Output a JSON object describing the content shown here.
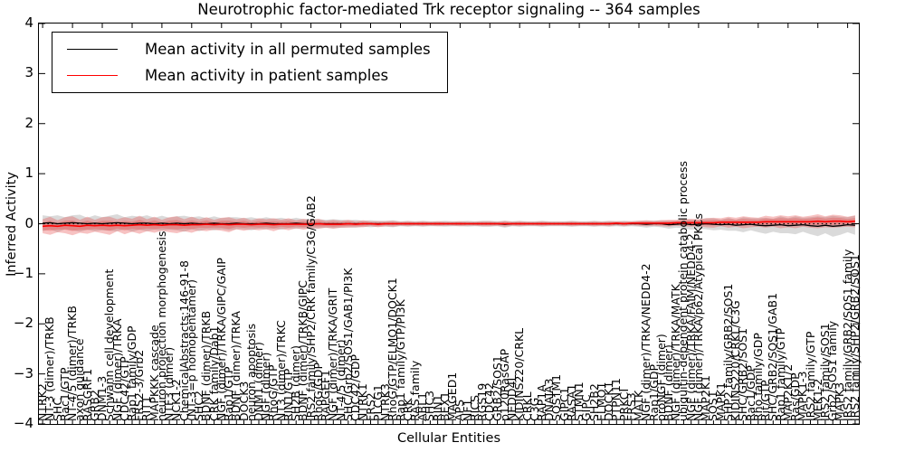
{
  "figure": {
    "title": "Neurotrophic factor-mediated Trk receptor signaling -- 364 samples",
    "xlabel": "Cellular Entities",
    "ylabel": "Inferred Activity",
    "legend": [
      {
        "label": "Mean activity in all permuted samples",
        "color": "#000000"
      },
      {
        "label": "Mean activity in patient samples",
        "color": "#ff0000"
      }
    ],
    "colors": {
      "permuted_line": "#000000",
      "permuted_band": "rgba(140,140,140,0.32)",
      "patient_line": "#ff0000",
      "patient_band": "rgba(232,70,70,0.33)",
      "axis": "#000000",
      "background": "#ffffff"
    }
  },
  "chart_data": {
    "type": "line",
    "title": "Neurotrophic factor-mediated Trk receptor signaling -- 364 samples",
    "xlabel": "Cellular Entities",
    "ylabel": "Inferred Activity",
    "ylim": [
      -4,
      4
    ],
    "ytick_labels": [
      "4",
      "3",
      "2",
      "1",
      "0",
      "−1",
      "−2",
      "−3",
      "−4"
    ],
    "yticks": [
      4,
      3,
      2,
      1,
      0,
      -1,
      -2,
      -3,
      -4
    ],
    "grid": false,
    "legend_position": "upper left",
    "zero_line_style": "dotted",
    "sample_count": 364,
    "categories": [
      "NTRK2",
      "NT-3 (dimer)/TRKB",
      "SHC",
      "Rac1/GTP",
      "NT-4/5 (dimer)/TRKB",
      "axon guidance",
      "RASGRF1",
      "GRB2",
      "DNM1-3",
      "Schwann cell development",
      "NGF (dimer)/TRKA",
      "CDC42/GTP",
      "Rap1 family/GDP",
      "FRS2-3/Grb2",
      "RIT1",
      "MAPKKK cascade",
      "neuron projection morphogenesis",
      "NTF3 (dimer)",
      "NCK1-2",
      "ChemicalAbstracts:146-91-8",
      "(NT-3=p homopentamer)",
      "SHC2",
      "BDNF (dimer)/TRKB",
      "CRK family/Dab1",
      "NGF (dimer)/TRKA/GIPC/GAIP",
      "Rap1/GTP",
      "BDNF (dimer)/TRKA",
      "DOCK3",
      "neuron apoptosis",
      "DNM1 (dimer)",
      "NGF (dimer)",
      "RhoG/GTP",
      "NT3 (dimer)/TRKC",
      "RIN1/GTP",
      "SH2B (dimer)",
      "BDNF (dimer)/TRKB/GIPC",
      "IRS2 family/SHP2/CRK family/C3G/GAB2",
      "RhoG/GDP",
      "RAPGEF1",
      "NGF (dimer)/TRKA/GRIT",
      "NT-4/5 (dimer)",
      "SHC/Grb2/SOS1/GAB1/PI3K",
      "CDC42/GDP",
      "NTRK1",
      "FRS2",
      "PLCG1",
      "NTRK3",
      "RhoG/GTP/ELMO1/DOCK1",
      "Rap1 family/GTP/PI3K",
      "CRK",
      "RAS family",
      "ABL1",
      "SHC3",
      "RIN1",
      "BEX1",
      "MAGED1",
      "APS",
      "NF1",
      "RICS",
      "RGS19",
      "CDC42",
      "GRB2/SOS1",
      "p120RasGAP",
      "NEDD4L",
      "KIDINS220/CRKL",
      "CRKL",
      "C3G",
      "RAP1A",
      "DNAJA3",
      "SQSTM1",
      "GIPC1",
      "RASA1",
      "STMN1",
      "GIPC",
      "SH2B2",
      "ELMO1",
      "DOCK1",
      "PTPN11",
      "PRKCI",
      "FRS3",
      "MATK",
      "NGF (dimer)/TRKA/NEDD4-2",
      "Rap1/GDP",
      "proNGF (dimer)",
      "BDNF (dimer)",
      "NGF (dimer)/TRKA/MATK",
      "ubiquitin-dependent protein catabolic process",
      "NGF (dimer)/TRKA/FAIM/NEDD4-2",
      "NGF (dimer)/TRKA/p62/Atypical PKCs",
      "MAP2K1",
      "SOS1",
      "MAPK1",
      "SHP2 family/GRB2/SOS1",
      "KIDINS220/CRKL/C3G",
      "SHC/GRB2/SOS1",
      "Rac1/GDP",
      "Rho family/GDP",
      "Rit/GTP",
      "SHC/GRB2/SOS1/GAB1",
      "Rap1 family/GTP",
      "MAP2K1/2",
      "Ras/GDP",
      "MAPK1-3",
      "IRS2 family/GTP",
      "MEK1-2",
      "IRS2 family/SOS1",
      "Grb2/SOS1 family",
      "MAPK3",
      "IRS2 family/GRB2/SOS1 family",
      "IRS2 family/SHP2/GRB2/SOS1"
    ],
    "series": [
      {
        "name": "Mean activity in all permuted samples",
        "mean": [
          0.01,
          0.02,
          0.0,
          0.01,
          0.02,
          0.01,
          0.0,
          0.01,
          0.0,
          0.01,
          0.02,
          0.01,
          0.0,
          0.01,
          0.01,
          0.0,
          0.01,
          0.0,
          0.01,
          0.0,
          0.01,
          0.0,
          0.0,
          0.01,
          0.0,
          0.0,
          0.01,
          0.0,
          0.0,
          0.0,
          0.01,
          0.0,
          0.0,
          0.0,
          0.01,
          0.0,
          0.0,
          0.0,
          0.0,
          0.0,
          0.0,
          0.0,
          0.0,
          0.0,
          0.0,
          0.0,
          0.0,
          0.0,
          0.0,
          0.0,
          0.0,
          0.0,
          0.0,
          0.0,
          0.0,
          0.0,
          0.0,
          0.0,
          0.0,
          0.0,
          0.0,
          0.0,
          -0.01,
          0.0,
          0.0,
          0.0,
          0.0,
          0.0,
          0.0,
          0.0,
          0.0,
          0.0,
          0.0,
          0.0,
          0.0,
          0.0,
          0.0,
          0.0,
          0.0,
          0.0,
          0.0,
          -0.01,
          0.0,
          0.0,
          -0.02,
          -0.01,
          0.0,
          -0.02,
          -0.01,
          0.0,
          -0.01,
          -0.02,
          -0.01,
          -0.03,
          -0.02,
          -0.01,
          -0.03,
          -0.04,
          -0.03,
          -0.02,
          -0.04,
          -0.03,
          -0.02,
          -0.04,
          -0.05,
          -0.03,
          -0.05,
          -0.04,
          -0.02,
          -0.03
        ],
        "std": [
          0.16,
          0.13,
          0.17,
          0.12,
          0.15,
          0.17,
          0.12,
          0.16,
          0.13,
          0.15,
          0.17,
          0.12,
          0.16,
          0.13,
          0.16,
          0.12,
          0.15,
          0.12,
          0.14,
          0.16,
          0.12,
          0.15,
          0.11,
          0.14,
          0.11,
          0.13,
          0.12,
          0.11,
          0.13,
          0.1,
          0.12,
          0.1,
          0.12,
          0.09,
          0.11,
          0.09,
          0.1,
          0.09,
          0.08,
          0.09,
          0.08,
          0.07,
          0.08,
          0.06,
          0.07,
          0.06,
          0.06,
          0.07,
          0.05,
          0.06,
          0.05,
          0.06,
          0.05,
          0.05,
          0.06,
          0.05,
          0.05,
          0.06,
          0.05,
          0.06,
          0.06,
          0.05,
          0.07,
          0.05,
          0.06,
          0.05,
          0.05,
          0.06,
          0.05,
          0.05,
          0.05,
          0.06,
          0.05,
          0.05,
          0.06,
          0.05,
          0.06,
          0.05,
          0.06,
          0.05,
          0.06,
          0.07,
          0.06,
          0.07,
          0.08,
          0.07,
          0.09,
          0.1,
          0.09,
          0.11,
          0.12,
          0.1,
          0.13,
          0.11,
          0.15,
          0.12,
          0.14,
          0.16,
          0.13,
          0.17,
          0.15,
          0.18,
          0.14,
          0.17,
          0.2,
          0.16,
          0.21,
          0.18,
          0.15,
          0.19
        ]
      },
      {
        "name": "Mean activity in patient samples",
        "mean": [
          -0.05,
          -0.04,
          -0.05,
          -0.03,
          -0.04,
          -0.05,
          -0.03,
          -0.04,
          -0.03,
          -0.04,
          -0.03,
          -0.04,
          -0.03,
          -0.02,
          -0.03,
          -0.02,
          -0.03,
          -0.02,
          -0.02,
          -0.03,
          -0.02,
          -0.02,
          -0.01,
          -0.02,
          -0.01,
          -0.02,
          -0.01,
          -0.01,
          -0.02,
          -0.01,
          -0.01,
          -0.02,
          -0.01,
          -0.01,
          -0.01,
          -0.01,
          -0.01,
          0.0,
          -0.01,
          -0.01,
          -0.01,
          0.0,
          -0.01,
          0.0,
          0.0,
          -0.01,
          0.0,
          0.0,
          0.0,
          0.0,
          0.0,
          0.0,
          0.0,
          0.0,
          0.0,
          0.0,
          0.0,
          0.0,
          0.0,
          0.0,
          0.0,
          0.0,
          0.0,
          0.0,
          0.0,
          0.0,
          0.0,
          0.0,
          0.0,
          0.0,
          0.0,
          0.0,
          0.0,
          0.0,
          0.0,
          0.0,
          0.0,
          0.01,
          0.0,
          0.01,
          0.01,
          0.01,
          0.01,
          0.01,
          0.01,
          0.02,
          0.02,
          0.02,
          0.02,
          0.02,
          0.02,
          0.03,
          0.03,
          0.03,
          0.03,
          0.03,
          0.03,
          0.04,
          0.04,
          0.04,
          0.04,
          0.04,
          0.04,
          0.04,
          0.05,
          0.04,
          0.05,
          0.05,
          0.04,
          0.05
        ],
        "std": [
          0.14,
          0.18,
          0.12,
          0.16,
          0.19,
          0.13,
          0.17,
          0.12,
          0.16,
          0.18,
          0.12,
          0.17,
          0.13,
          0.18,
          0.12,
          0.16,
          0.11,
          0.15,
          0.17,
          0.12,
          0.16,
          0.11,
          0.14,
          0.1,
          0.13,
          0.15,
          0.1,
          0.13,
          0.09,
          0.12,
          0.1,
          0.13,
          0.09,
          0.12,
          0.08,
          0.11,
          0.08,
          0.1,
          0.07,
          0.09,
          0.07,
          0.08,
          0.06,
          0.07,
          0.05,
          0.06,
          0.05,
          0.06,
          0.04,
          0.05,
          0.04,
          0.05,
          0.04,
          0.05,
          0.04,
          0.04,
          0.05,
          0.04,
          0.04,
          0.05,
          0.05,
          0.04,
          0.06,
          0.04,
          0.05,
          0.04,
          0.04,
          0.05,
          0.04,
          0.04,
          0.04,
          0.05,
          0.04,
          0.04,
          0.05,
          0.04,
          0.05,
          0.04,
          0.05,
          0.04,
          0.05,
          0.06,
          0.05,
          0.06,
          0.07,
          0.06,
          0.07,
          0.08,
          0.07,
          0.09,
          0.1,
          0.08,
          0.11,
          0.09,
          0.12,
          0.1,
          0.09,
          0.12,
          0.1,
          0.13,
          0.11,
          0.13,
          0.1,
          0.12,
          0.14,
          0.11,
          0.13,
          0.12,
          0.1,
          0.12
        ]
      }
    ]
  }
}
